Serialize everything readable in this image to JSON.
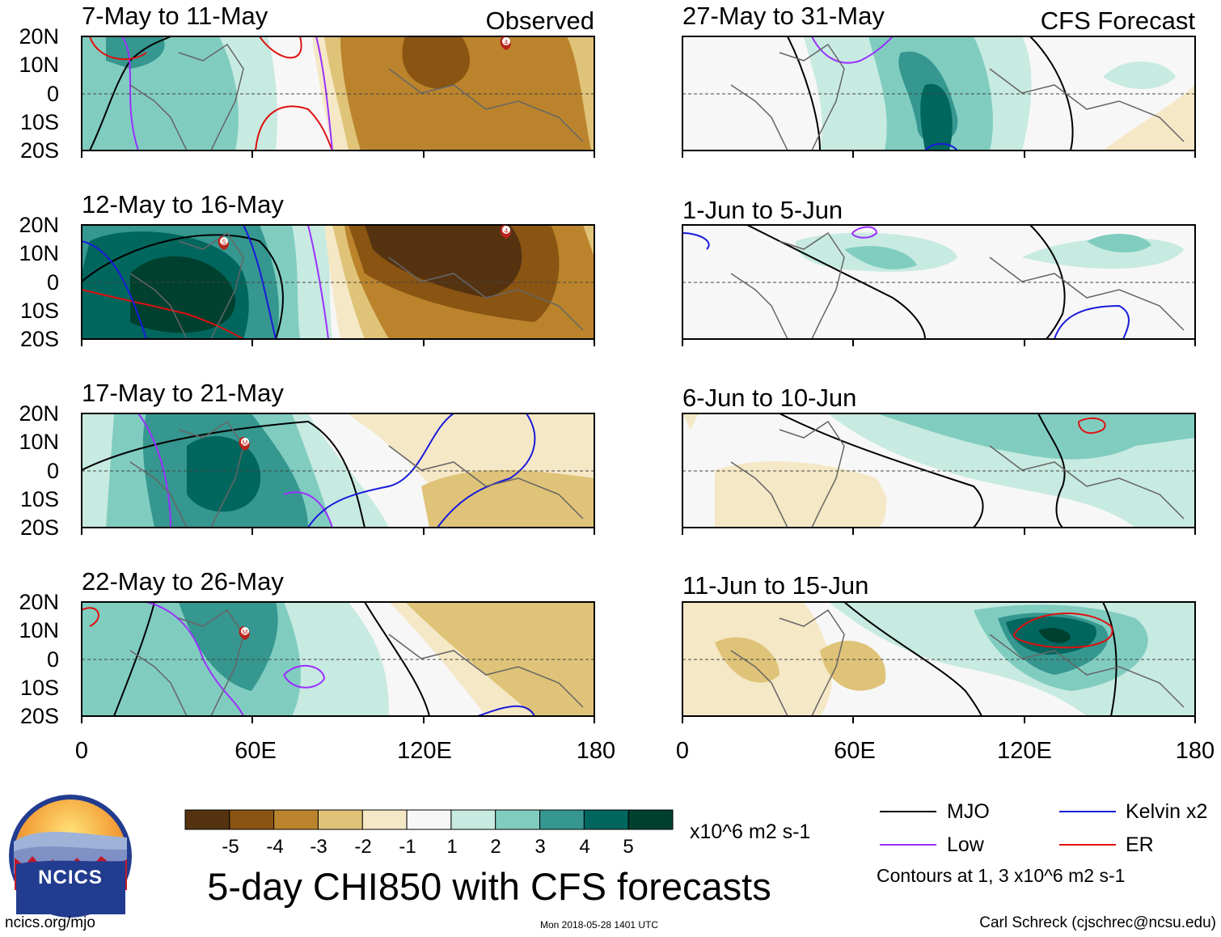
{
  "chart_data": {
    "type": "heatmap",
    "title": "5-day CHI850 with CFS forecasts",
    "variable": "CHI850",
    "lat_ticks": [
      "20N",
      "10N",
      "0",
      "10S",
      "20S"
    ],
    "lon_ticks": [
      "0",
      "60E",
      "120E",
      "180"
    ],
    "lat_range": [
      -20,
      20
    ],
    "lon_range": [
      0,
      180
    ],
    "columns": [
      {
        "label": "Observed",
        "panels": [
          {
            "period": "7-May to 11-May"
          },
          {
            "period": "12-May to 16-May"
          },
          {
            "period": "17-May to 21-May"
          },
          {
            "period": "22-May to 26-May"
          }
        ]
      },
      {
        "label": "CFS Forecast",
        "panels": [
          {
            "period": "27-May to 31-May"
          },
          {
            "period": "1-Jun to 5-Jun"
          },
          {
            "period": "6-Jun to 10-Jun"
          },
          {
            "period": "11-Jun to 15-Jun"
          }
        ]
      }
    ],
    "colorbar": {
      "tick_labels": [
        "-5",
        "-4",
        "-3",
        "-2",
        "-1",
        "1",
        "2",
        "3",
        "4",
        "5"
      ],
      "units": "x10^6 m2 s-1",
      "colors": [
        "#553311",
        "#8a5412",
        "#bb842c",
        "#dfc378",
        "#f5e8c6",
        "#f7f7f7",
        "#c7eae1",
        "#80cdc0",
        "#35978f",
        "#01665e",
        "#00402f"
      ]
    },
    "legend": {
      "entries": [
        {
          "label": "MJO",
          "color": "#000000"
        },
        {
          "label": "Kelvin x2",
          "color": "#1a1adb"
        },
        {
          "label": "Low",
          "color": "#9b30ff"
        },
        {
          "label": "ER",
          "color": "#e01010"
        }
      ],
      "note": "Contours at 1, 3 x10^6 m2 s-1"
    },
    "markers": {
      "storm_labels": [
        "4",
        "S",
        "M"
      ]
    }
  },
  "logo": {
    "text": "NCICS"
  },
  "footer": {
    "url": "ncics.org/mjo",
    "timestamp": "Mon 2018-05-28 1401 UTC",
    "author": "Carl Schreck (cjschrec@ncsu.edu)"
  }
}
